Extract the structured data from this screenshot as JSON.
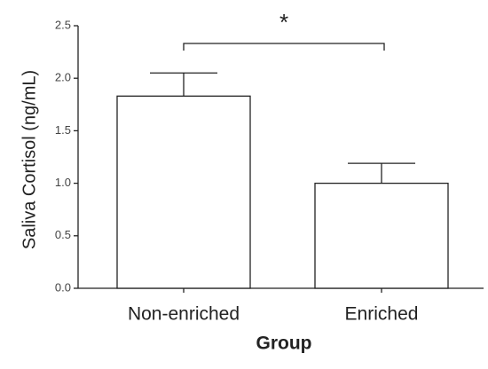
{
  "chart_data": {
    "type": "bar",
    "x_label": "Group",
    "y_label": "Saliva Cortisol (ng/mL)",
    "annotation": "*",
    "categories": [
      "Non-enriched",
      "Enriched"
    ],
    "values": [
      1.83,
      1.0
    ],
    "errors": [
      0.22,
      0.19
    ],
    "color": "#ffffff",
    "ylim": [
      0,
      2.5
    ],
    "yticks": [
      {
        "value": 0,
        "label": "0.0"
      },
      0.5,
      {
        "value": 1,
        "label": "1.0"
      },
      1.5,
      {
        "value": 2,
        "label": "2.0"
      },
      2.5
    ]
  }
}
